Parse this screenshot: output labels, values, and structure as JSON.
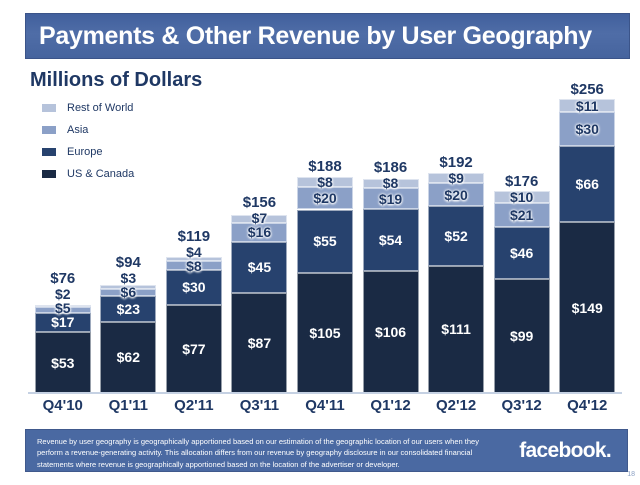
{
  "slide": {
    "title": "Payments & Other Revenue by User Geography",
    "subtitle": "Millions of Dollars",
    "footnote": "Revenue by user geography is geographically apportioned based on our estimation of the geographic location of our users when they perform a revenue-generating activity. This allocation differs from our revenue by geography disclosure in our consolidated financial statements where revenue is geographically apportioned based on the location of the advertiser or developer.",
    "logo_text": "facebook.",
    "page_number": "18"
  },
  "colors": {
    "title_bar": "#4a69a2",
    "footer_bar": "#4a69a2",
    "rest_of_world": "#b6c3db",
    "asia": "#8ba0c7",
    "europe": "#27426e",
    "us_canada": "#1a2a44",
    "dark_text": "#1f3864",
    "axis_line": "#c5d1e3"
  },
  "chart_data": {
    "type": "bar",
    "stacked": true,
    "title": "Millions of Dollars",
    "value_unit": "millions of dollars",
    "value_prefix": "$",
    "categories": [
      "Q4'10",
      "Q1'11",
      "Q2'11",
      "Q3'11",
      "Q4'11",
      "Q1'12",
      "Q2'12",
      "Q3'12",
      "Q4'12"
    ],
    "series": [
      {
        "name": "US & Canada",
        "color_key": "us_canada",
        "label_style": "light",
        "values": [
          53,
          62,
          77,
          87,
          105,
          106,
          111,
          99,
          149
        ]
      },
      {
        "name": "Europe",
        "color_key": "europe",
        "label_style": "light",
        "values": [
          17,
          23,
          30,
          45,
          55,
          54,
          52,
          46,
          66
        ]
      },
      {
        "name": "Asia",
        "color_key": "asia",
        "label_style": "dark",
        "values": [
          5,
          6,
          8,
          16,
          20,
          19,
          20,
          21,
          30
        ]
      },
      {
        "name": "Rest of World",
        "color_key": "rest_of_world",
        "label_style": "dark",
        "values": [
          2,
          3,
          4,
          7,
          8,
          8,
          9,
          10,
          11
        ]
      }
    ],
    "totals": [
      76,
      94,
      119,
      156,
      188,
      186,
      192,
      176,
      256
    ],
    "legend": [
      {
        "label": "Rest of World",
        "color_key": "rest_of_world"
      },
      {
        "label": "Asia",
        "color_key": "asia"
      },
      {
        "label": "Europe",
        "color_key": "europe"
      },
      {
        "label": "US & Canada",
        "color_key": "us_canada"
      }
    ],
    "ylim": [
      0,
      260
    ],
    "grid": false,
    "legend_position": "top-left"
  }
}
